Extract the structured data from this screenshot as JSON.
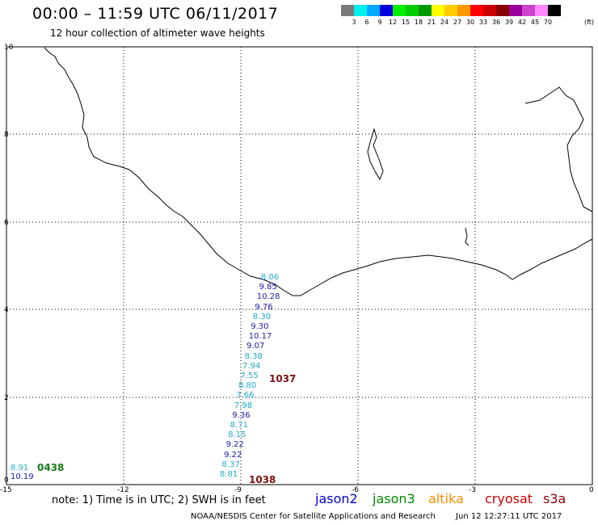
{
  "header": {
    "title": "00:00 – 11:59 UTC 06/11/2017",
    "subtitle": "12 hour collection of altimeter wave heights"
  },
  "colorscale": {
    "colors": [
      "#7a7a7a",
      "#00f0f0",
      "#00aaff",
      "#0000dd",
      "#00ee00",
      "#00cc00",
      "#009900",
      "#ffff00",
      "#ffcc00",
      "#ff9900",
      "#ff0000",
      "#cc0000",
      "#8b0000",
      "#990099",
      "#cc44cc",
      "#ff88ff",
      "#000000"
    ],
    "ticks": [
      "3",
      "6",
      "9",
      "12",
      "15",
      "18",
      "21",
      "24",
      "27",
      "30",
      "33",
      "36",
      "39",
      "42",
      "45",
      "70"
    ],
    "unit": "(ft)"
  },
  "axes": {
    "x_ticks": [
      "-15",
      "-12",
      "-9",
      "-6",
      "-3",
      "0"
    ],
    "y_ticks": [
      "0",
      "2",
      "4",
      "6",
      "8",
      "10"
    ]
  },
  "track": {
    "values": [
      "8.06",
      "9.85",
      "10.28",
      "9.76",
      "8.30",
      "9.30",
      "10.17",
      "9.07",
      "8.38",
      "7.94",
      "7.55",
      "8.80",
      "7.66",
      "7.98",
      "9.36",
      "8.71",
      "8.15",
      "9.22",
      "9.22",
      "8.37",
      "8.81"
    ],
    "colors": [
      "#22aacc",
      "#1a1aaa",
      "#1a1aaa",
      "#1a1aaa",
      "#22aacc",
      "#1a1aaa",
      "#1a1aaa",
      "#1a1aaa",
      "#22aacc",
      "#22aacc",
      "#22aacc",
      "#22aacc",
      "#22aacc",
      "#22aacc",
      "#1a1aaa",
      "#22aacc",
      "#22aacc",
      "#1a1aaa",
      "#1a1aaa",
      "#22aacc",
      "#22aacc"
    ]
  },
  "times": {
    "t1": "1037",
    "t2": "1038",
    "t3": "0438"
  },
  "corner": {
    "v1": "8.91",
    "v2": "10.19"
  },
  "note": "note:  1) Time is in UTC;  2) SWH is in feet",
  "legend": {
    "jason2": "jason2",
    "jason3": "jason3",
    "altika": "altika",
    "cryosat": "cryosat",
    "s3a": "s3a",
    "jason2_color": "#0000cc",
    "jason3_color": "#008800",
    "altika_color": "#ff8c00",
    "cryosat_color": "#cc0000",
    "s3a_color": "#880000"
  },
  "footer": {
    "credit": "NOAA/NESDIS Center for Satellite Applications and Research",
    "timestamp": "Jun 12 12:27:11 UTC 2017"
  }
}
